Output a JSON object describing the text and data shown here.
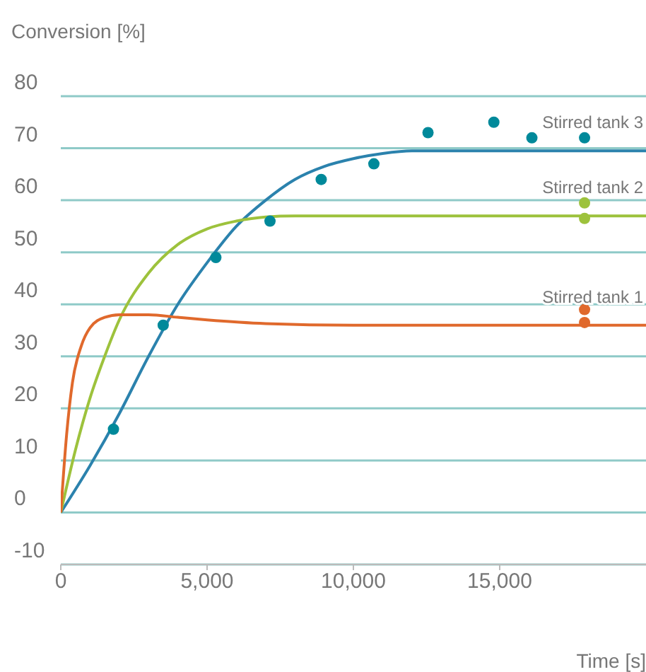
{
  "chart_data": {
    "type": "line",
    "ylabel": "Conversion [%]",
    "xlabel": "Time [s]",
    "xlim": [
      0,
      20000
    ],
    "xticks": [
      0,
      {
        "value": 5000,
        "label": "5,000"
      },
      {
        "value": 10000,
        "label": "10,000"
      },
      {
        "value": 15000,
        "label": "15,000"
      }
    ],
    "ylim": [
      -10,
      80
    ],
    "yticks": [
      -10,
      0,
      10,
      20,
      30,
      40,
      50,
      60,
      70,
      80
    ],
    "grid": "y",
    "legend": false,
    "line_style": "solid",
    "series": [
      {
        "name": "Stirred tank 3",
        "color": "#2b82ad",
        "x": [
          0,
          1000,
          2000,
          3000,
          4000,
          5000,
          6000,
          7000,
          8000,
          9000,
          10000,
          11000,
          12000,
          15000,
          20000
        ],
        "values": [
          0,
          9,
          19,
          30,
          40,
          48,
          55,
          60,
          64,
          66.5,
          68,
          69,
          69.5,
          69.5,
          69.5
        ]
      },
      {
        "name": "Stirred tank 2",
        "color": "#9dc23c",
        "x": [
          0,
          500,
          1000,
          1500,
          2000,
          3000,
          4000,
          5000,
          6000,
          7000,
          8000,
          10000,
          20000
        ],
        "values": [
          0,
          12,
          22,
          30,
          37,
          46,
          51.5,
          54.5,
          56,
          56.8,
          57,
          57,
          57
        ]
      },
      {
        "name": "Stirred tank 1",
        "color": "#e0692c",
        "x": [
          0,
          200,
          400,
          700,
          1000,
          1500,
          2000,
          3000,
          4000,
          5000,
          7000,
          10000,
          15000,
          20000
        ],
        "values": [
          0,
          15,
          25,
          32,
          35.5,
          37.5,
          38,
          38,
          37.5,
          37,
          36.3,
          36,
          36,
          36
        ]
      },
      {
        "type": "scatter",
        "color": "#00899a",
        "x": [
          1800,
          3500,
          5300,
          7150,
          8900,
          10700,
          12550,
          14800,
          16100,
          17900
        ],
        "values": [
          16,
          36,
          49,
          56,
          64,
          67,
          73,
          75,
          72,
          72
        ]
      },
      {
        "type": "scatter",
        "color": "#9dc23c",
        "x": [
          17900,
          17900
        ],
        "values": [
          59.5,
          56.5
        ]
      },
      {
        "type": "scatter",
        "color": "#e0692c",
        "x": [
          17900,
          17900
        ],
        "values": [
          39,
          36.5
        ]
      }
    ]
  }
}
